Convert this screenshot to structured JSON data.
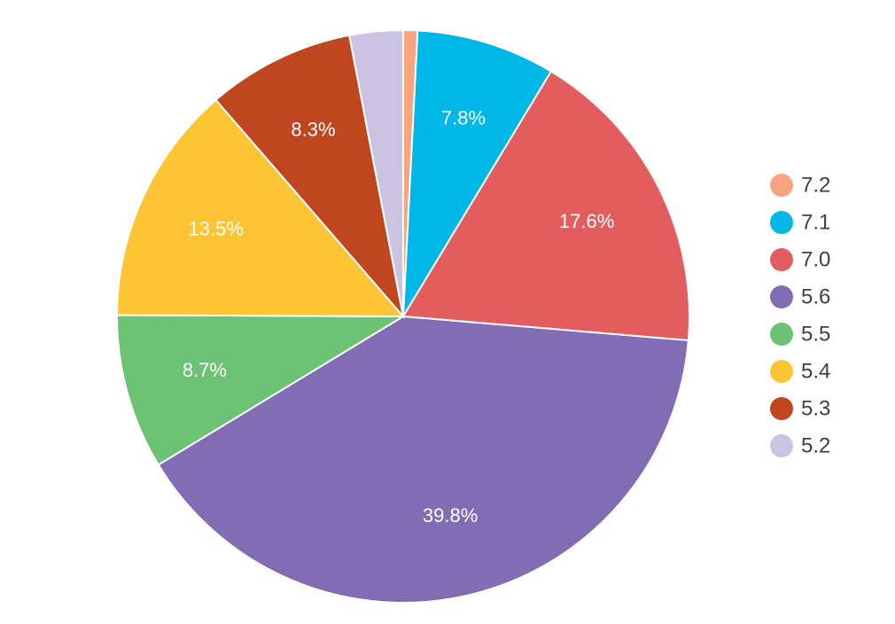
{
  "chart_data": {
    "type": "pie",
    "title": "",
    "legend_position": "right",
    "slices": [
      {
        "label": "7.2",
        "value": 0.8,
        "data_label": "",
        "color": "#F7A47F"
      },
      {
        "label": "7.1",
        "value": 7.8,
        "data_label": "7.8%",
        "color": "#00B8E8"
      },
      {
        "label": "7.0",
        "value": 17.6,
        "data_label": "17.6%",
        "color": "#E35D5E"
      },
      {
        "label": "5.6",
        "value": 39.8,
        "data_label": "39.8%",
        "color": "#826CB3"
      },
      {
        "label": "5.5",
        "value": 8.7,
        "data_label": "8.7%",
        "color": "#6CC373"
      },
      {
        "label": "5.4",
        "value": 13.5,
        "data_label": "13.5%",
        "color": "#FDC433"
      },
      {
        "label": "5.3",
        "value": 8.3,
        "data_label": "8.3%",
        "color": "#C0461F"
      },
      {
        "label": "5.2",
        "value": 3.0,
        "data_label": "",
        "color": "#CBC3E2"
      }
    ]
  }
}
